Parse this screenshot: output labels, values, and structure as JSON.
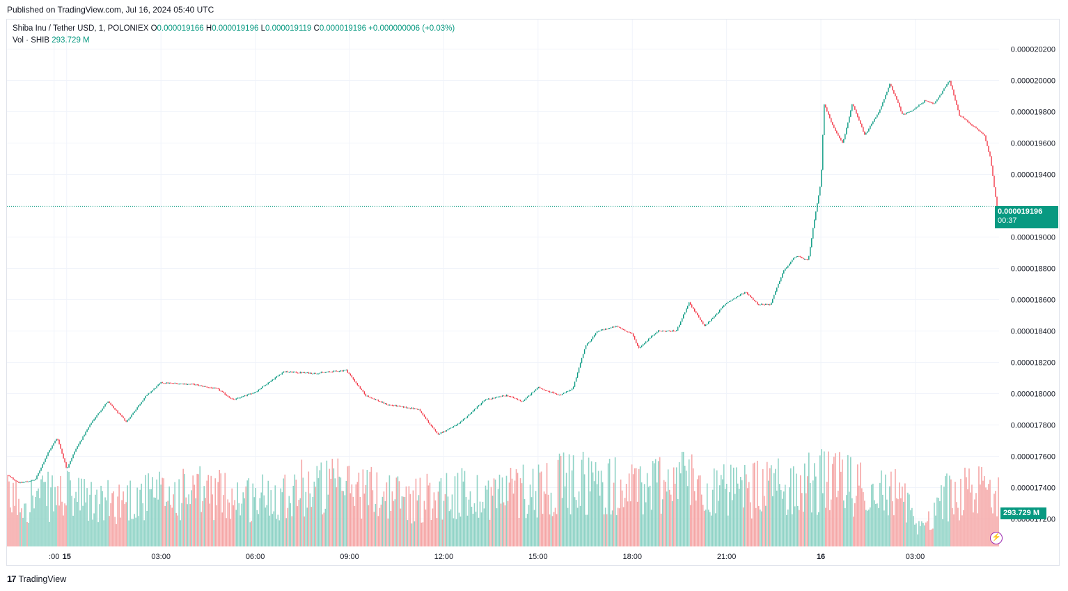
{
  "published": "Published on TradingView.com, Jul 16, 2024 05:40 UTC",
  "legend": {
    "symbol": "Shiba Inu / Tether USD, 1, POLONIEX",
    "o_label": "O",
    "o_value": "0.000019166",
    "h_label": "H",
    "h_value": "0.000019196",
    "l_label": "L",
    "l_value": "0.000019119",
    "c_label": "C",
    "c_value": "0.000019196",
    "change": "+0.000000006 (+0.03%)"
  },
  "volume_legend": {
    "label": "Vol · SHIB",
    "value": "293.729 M"
  },
  "last_price_tag": {
    "price": "0.000019196",
    "countdown": "00:37"
  },
  "volume_tag": "293.729 M",
  "brand": {
    "logo": "17",
    "name": "TradingView"
  },
  "colors": {
    "up": "#089981",
    "down": "#f23645",
    "vol_up": "#8fd3c6",
    "vol_down": "#f5a6a6",
    "grid": "#f0f3fa",
    "text": "#131722"
  },
  "chart_data": {
    "type": "candlestick",
    "title": "Shiba Inu / Tether USD, 1, POLONIEX",
    "y_ticks": [
      "0.000020200",
      "0.000020000",
      "0.000019800",
      "0.000019600",
      "0.000019400",
      "0.000019000",
      "0.000018800",
      "0.000018600",
      "0.000018400",
      "0.000018200",
      "0.000018000",
      "0.000017800",
      "0.000017600",
      "0.000017400",
      "0.000017200"
    ],
    "y_tick_values": [
      2.02e-05,
      2e-05,
      1.98e-05,
      1.96e-05,
      1.94e-05,
      1.9e-05,
      1.88e-05,
      1.86e-05,
      1.84e-05,
      1.82e-05,
      1.8e-05,
      1.78e-05,
      1.76e-05,
      1.74e-05,
      1.72e-05
    ],
    "ylim": [
      1.71e-05,
      2.03e-05
    ],
    "x_ticks": [
      ":00",
      "15",
      "03:00",
      "06:00",
      "09:00",
      "12:00",
      "15:00",
      "18:00",
      "21:00",
      "16",
      "03:00"
    ],
    "x_tick_hours": [
      -0.4,
      0,
      3,
      6,
      9,
      12,
      15,
      18,
      21,
      24,
      27
    ],
    "x_range_hours": [
      -1.9,
      29.67
    ],
    "price_path": [
      {
        "t": -1.9,
        "p": 1.748e-05
      },
      {
        "t": -1.5,
        "p": 1.743e-05
      },
      {
        "t": -1.0,
        "p": 1.745e-05
      },
      {
        "t": -0.6,
        "p": 1.762e-05
      },
      {
        "t": -0.3,
        "p": 1.772e-05
      },
      {
        "t": 0.0,
        "p": 1.752e-05
      },
      {
        "t": 0.3,
        "p": 1.765e-05
      },
      {
        "t": 0.8,
        "p": 1.782e-05
      },
      {
        "t": 1.3,
        "p": 1.795e-05
      },
      {
        "t": 1.9,
        "p": 1.782e-05
      },
      {
        "t": 2.5,
        "p": 1.798e-05
      },
      {
        "t": 3.0,
        "p": 1.807e-05
      },
      {
        "t": 4.0,
        "p": 1.806e-05
      },
      {
        "t": 4.8,
        "p": 1.803e-05
      },
      {
        "t": 5.3,
        "p": 1.796e-05
      },
      {
        "t": 6.0,
        "p": 1.801e-05
      },
      {
        "t": 6.9,
        "p": 1.814e-05
      },
      {
        "t": 7.9,
        "p": 1.813e-05
      },
      {
        "t": 8.9,
        "p": 1.815e-05
      },
      {
        "t": 9.5,
        "p": 1.799e-05
      },
      {
        "t": 10.2,
        "p": 1.793e-05
      },
      {
        "t": 11.2,
        "p": 1.79e-05
      },
      {
        "t": 11.8,
        "p": 1.774e-05
      },
      {
        "t": 12.5,
        "p": 1.781e-05
      },
      {
        "t": 13.3,
        "p": 1.796e-05
      },
      {
        "t": 14.0,
        "p": 1.799e-05
      },
      {
        "t": 14.5,
        "p": 1.795e-05
      },
      {
        "t": 15.0,
        "p": 1.804e-05
      },
      {
        "t": 15.7,
        "p": 1.799e-05
      },
      {
        "t": 16.1,
        "p": 1.803e-05
      },
      {
        "t": 16.5,
        "p": 1.83e-05
      },
      {
        "t": 16.9,
        "p": 1.84e-05
      },
      {
        "t": 17.5,
        "p": 1.843e-05
      },
      {
        "t": 18.0,
        "p": 1.838e-05
      },
      {
        "t": 18.2,
        "p": 1.829e-05
      },
      {
        "t": 18.8,
        "p": 1.84e-05
      },
      {
        "t": 19.4,
        "p": 1.84e-05
      },
      {
        "t": 19.8,
        "p": 1.858e-05
      },
      {
        "t": 20.3,
        "p": 1.843e-05
      },
      {
        "t": 21.0,
        "p": 1.858e-05
      },
      {
        "t": 21.6,
        "p": 1.865e-05
      },
      {
        "t": 22.0,
        "p": 1.857e-05
      },
      {
        "t": 22.4,
        "p": 1.857e-05
      },
      {
        "t": 22.8,
        "p": 1.878e-05
      },
      {
        "t": 23.2,
        "p": 1.888e-05
      },
      {
        "t": 23.6,
        "p": 1.885e-05
      },
      {
        "t": 23.8,
        "p": 1.912e-05
      },
      {
        "t": 24.0,
        "p": 1.935e-05
      },
      {
        "t": 24.1,
        "p": 1.985e-05
      },
      {
        "t": 24.4,
        "p": 1.97e-05
      },
      {
        "t": 24.7,
        "p": 1.96e-05
      },
      {
        "t": 25.0,
        "p": 1.985e-05
      },
      {
        "t": 25.4,
        "p": 1.965e-05
      },
      {
        "t": 25.9,
        "p": 1.982e-05
      },
      {
        "t": 26.2,
        "p": 1.998e-05
      },
      {
        "t": 26.6,
        "p": 1.978e-05
      },
      {
        "t": 27.0,
        "p": 1.982e-05
      },
      {
        "t": 27.3,
        "p": 1.987e-05
      },
      {
        "t": 27.6,
        "p": 1.985e-05
      },
      {
        "t": 28.1,
        "p": 2e-05
      },
      {
        "t": 28.4,
        "p": 1.978e-05
      },
      {
        "t": 28.9,
        "p": 1.97e-05
      },
      {
        "t": 29.2,
        "p": 1.965e-05
      },
      {
        "t": 29.4,
        "p": 1.95e-05
      },
      {
        "t": 29.6,
        "p": 1.919e-05
      }
    ],
    "last_price": 1.9196e-05,
    "open": 1.9166e-05,
    "high": 1.9196e-05,
    "low": 1.9119e-05,
    "close": 1.9196e-05,
    "volume_last": "293.729 M",
    "volume_ylim_millions": [
      0,
      900
    ],
    "volume_profile": [
      {
        "t": -1.9,
        "v": 330
      },
      {
        "t": 0.0,
        "v": 360
      },
      {
        "t": 1.0,
        "v": 300
      },
      {
        "t": 2.0,
        "v": 340
      },
      {
        "t": 3.0,
        "v": 360
      },
      {
        "t": 4.5,
        "v": 380
      },
      {
        "t": 6.0,
        "v": 340
      },
      {
        "t": 7.5,
        "v": 420
      },
      {
        "t": 9.0,
        "v": 420
      },
      {
        "t": 10.0,
        "v": 380
      },
      {
        "t": 11.0,
        "v": 330
      },
      {
        "t": 12.0,
        "v": 380
      },
      {
        "t": 13.0,
        "v": 360
      },
      {
        "t": 15.0,
        "v": 420
      },
      {
        "t": 16.5,
        "v": 460
      },
      {
        "t": 18.0,
        "v": 400
      },
      {
        "t": 19.5,
        "v": 500
      },
      {
        "t": 21.0,
        "v": 380
      },
      {
        "t": 22.5,
        "v": 420
      },
      {
        "t": 24.0,
        "v": 460
      },
      {
        "t": 25.5,
        "v": 420
      },
      {
        "t": 26.5,
        "v": 360
      },
      {
        "t": 27.2,
        "v": 130
      },
      {
        "t": 28.0,
        "v": 360
      },
      {
        "t": 29.0,
        "v": 380
      },
      {
        "t": 29.67,
        "v": 440
      }
    ]
  }
}
